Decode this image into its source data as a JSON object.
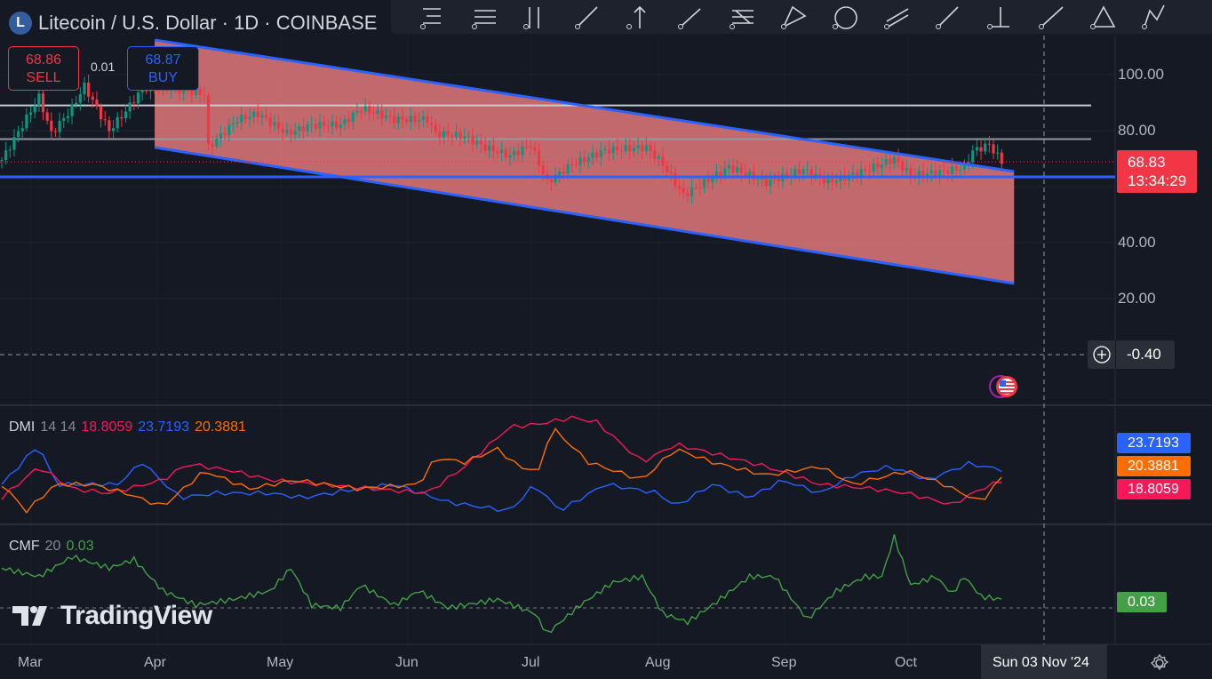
{
  "header": {
    "symbol_icon": "L",
    "title": "Litecoin / U.S. Dollar · 1D · COINBASE"
  },
  "trade": {
    "sell_price": "68.86",
    "sell_label": "SELL",
    "spread": "0.01",
    "buy_price": "68.87",
    "buy_label": "BUY"
  },
  "toolbar": {
    "icons": [
      "trend-tools-icon",
      "horizontal-lines-icon",
      "long-position-icon",
      "trend-line-icon",
      "arrow-up-icon",
      "brush-icon",
      "fib-icon",
      "projection-icon",
      "circle-icon",
      "parallel-channel-icon",
      "ray-icon",
      "anchor-icon",
      "line-icon",
      "triangle-icon",
      "pattern-icon"
    ]
  },
  "price_axis": {
    "ticks": [
      "100.00",
      "80.00",
      "40.00",
      "20.00"
    ],
    "last_price": "68.83",
    "countdown": "13:34:29",
    "crosshair_value": "-0.40"
  },
  "dmi": {
    "label": "DMI",
    "params": "14 14",
    "minus_di": "18.8059",
    "plus_di": "23.7193",
    "adx": "20.3881"
  },
  "cmf": {
    "label": "CMF",
    "params": "20",
    "value": "0.03"
  },
  "time_axis": {
    "months": [
      "Mar",
      "Apr",
      "May",
      "Jun",
      "Jul",
      "Aug",
      "Sep",
      "Oct"
    ],
    "crosshair_date": "Sun 03 Nov '24"
  },
  "watermark": "TradingView",
  "colors": {
    "bg": "#151924",
    "up": "#089981",
    "down": "#f23645",
    "channel": "#2962ff",
    "plus_di": "#2962ff",
    "minus_di": "#f7185a",
    "adx": "#ff6d00",
    "cmf": "#43a047"
  },
  "chart_data": {
    "type": "line",
    "title": "Litecoin / U.S. Dollar · 1D · COINBASE",
    "x_unit": "days since Feb 27 2024",
    "ylim": [
      10,
      110
    ],
    "price_keypoints": [
      [
        0,
        69.5
      ],
      [
        9,
        92
      ],
      [
        12,
        79
      ],
      [
        17,
        88
      ],
      [
        20,
        96
      ],
      [
        26,
        80
      ],
      [
        30,
        87
      ],
      [
        34,
        95
      ],
      [
        38,
        96
      ],
      [
        49,
        93
      ],
      [
        50,
        74
      ],
      [
        57,
        84
      ],
      [
        62,
        86
      ],
      [
        69,
        79
      ],
      [
        75,
        82
      ],
      [
        82,
        82
      ],
      [
        87,
        88
      ],
      [
        95,
        84
      ],
      [
        103,
        84
      ],
      [
        105,
        79
      ],
      [
        112,
        78
      ],
      [
        117,
        74
      ],
      [
        123,
        71
      ],
      [
        128,
        75
      ],
      [
        132,
        61.5
      ],
      [
        138,
        68
      ],
      [
        146,
        73
      ],
      [
        156,
        74
      ],
      [
        160,
        68
      ],
      [
        165,
        57
      ],
      [
        170,
        61.5
      ],
      [
        176,
        67
      ],
      [
        185,
        61.5
      ],
      [
        194,
        66
      ],
      [
        200,
        61.5
      ],
      [
        209,
        65.7
      ],
      [
        216,
        70
      ],
      [
        220,
        64
      ],
      [
        228,
        65.4
      ],
      [
        233,
        67
      ],
      [
        235,
        72.7
      ],
      [
        239,
        75
      ],
      [
        242,
        68.83
      ]
    ],
    "channel": {
      "upper": [
        [
          37,
          112.4
        ],
        [
          245,
          65.4
        ]
      ],
      "lower": [
        [
          37,
          74
        ],
        [
          245,
          25.4
        ]
      ]
    },
    "horizontal_levels": [
      89,
      77,
      63.5
    ],
    "dmi_series": [
      {
        "name": "+DI",
        "values": [
          [
            0,
            17.3
          ],
          [
            9,
            34.6
          ],
          [
            13,
            17.3
          ],
          [
            22,
            17.3
          ],
          [
            28,
            17.3
          ],
          [
            34,
            26.9
          ],
          [
            43,
            11.5
          ],
          [
            52,
            13.5
          ],
          [
            65,
            13.5
          ],
          [
            73,
            11.5
          ],
          [
            86,
            15.4
          ],
          [
            95,
            17.3
          ],
          [
            108,
            9.6
          ],
          [
            123,
            5.8
          ],
          [
            129,
            17.3
          ],
          [
            135,
            5.8
          ],
          [
            146,
            17.3
          ],
          [
            159,
            13.5
          ],
          [
            163,
            7.7
          ],
          [
            172,
            17.3
          ],
          [
            181,
            11.5
          ],
          [
            189,
            19.2
          ],
          [
            198,
            13.5
          ],
          [
            206,
            21.2
          ],
          [
            215,
            25
          ],
          [
            224,
            19.2
          ],
          [
            234,
            26.2
          ],
          [
            242,
            23.7
          ]
        ]
      },
      {
        "name": "-DI",
        "values": [
          [
            0,
            11.5
          ],
          [
            9,
            25
          ],
          [
            17,
            15.4
          ],
          [
            26,
            13.5
          ],
          [
            39,
            19.2
          ],
          [
            45,
            26.2
          ],
          [
            56,
            23.1
          ],
          [
            65,
            19.2
          ],
          [
            77,
            17.3
          ],
          [
            90,
            15.4
          ],
          [
            103,
            13.5
          ],
          [
            112,
            25
          ],
          [
            123,
            42.3
          ],
          [
            129,
            43.1
          ],
          [
            138,
            46.2
          ],
          [
            144,
            44.2
          ],
          [
            155,
            26.9
          ],
          [
            163,
            34.6
          ],
          [
            172,
            30.8
          ],
          [
            185,
            25
          ],
          [
            198,
            17.3
          ],
          [
            211,
            15.4
          ],
          [
            219,
            13.5
          ],
          [
            230,
            8.5
          ],
          [
            237,
            15.4
          ],
          [
            242,
            18.8
          ]
        ]
      },
      {
        "name": "ADX",
        "values": [
          [
            0,
            17.3
          ],
          [
            6,
            5.8
          ],
          [
            13,
            17.3
          ],
          [
            22,
            17.3
          ],
          [
            30,
            13.5
          ],
          [
            39,
            7.7
          ],
          [
            49,
            23.1
          ],
          [
            60,
            15.4
          ],
          [
            71,
            19.2
          ],
          [
            86,
            15.4
          ],
          [
            101,
            17.3
          ],
          [
            105,
            28.8
          ],
          [
            112,
            26.9
          ],
          [
            120,
            32.7
          ],
          [
            125,
            25
          ],
          [
            130,
            23.1
          ],
          [
            133,
            42.3
          ],
          [
            142,
            26.9
          ],
          [
            155,
            19.2
          ],
          [
            163,
            32.7
          ],
          [
            172,
            26.9
          ],
          [
            185,
            21.2
          ],
          [
            198,
            25
          ],
          [
            206,
            17.3
          ],
          [
            219,
            23.1
          ],
          [
            228,
            17.3
          ],
          [
            237,
            9.6
          ],
          [
            242,
            20.4
          ]
        ]
      }
    ],
    "cmf_series": [
      [
        0,
        0.14
      ],
      [
        9,
        0.11
      ],
      [
        17,
        0.18
      ],
      [
        26,
        0.14
      ],
      [
        32,
        0.17
      ],
      [
        39,
        0.06
      ],
      [
        47,
        0.01
      ],
      [
        56,
        0.03
      ],
      [
        65,
        0.06
      ],
      [
        70,
        0.14
      ],
      [
        75,
        0.01
      ],
      [
        82,
        0
      ],
      [
        87,
        0.08
      ],
      [
        95,
        0.01
      ],
      [
        101,
        0.06
      ],
      [
        108,
        0
      ],
      [
        120,
        0.03
      ],
      [
        129,
        -0.02
      ],
      [
        132,
        -0.09
      ],
      [
        140,
        0.01
      ],
      [
        148,
        0.09
      ],
      [
        155,
        0.11
      ],
      [
        160,
        -0.02
      ],
      [
        166,
        -0.05
      ],
      [
        172,
        0.01
      ],
      [
        181,
        0.11
      ],
      [
        187,
        0.11
      ],
      [
        195,
        -0.04
      ],
      [
        202,
        0.06
      ],
      [
        209,
        0.11
      ],
      [
        213,
        0.11
      ],
      [
        216,
        0.25
      ],
      [
        220,
        0.08
      ],
      [
        226,
        0.11
      ],
      [
        230,
        0.05
      ],
      [
        233,
        0.11
      ],
      [
        237,
        0.04
      ],
      [
        242,
        0.03
      ]
    ]
  }
}
